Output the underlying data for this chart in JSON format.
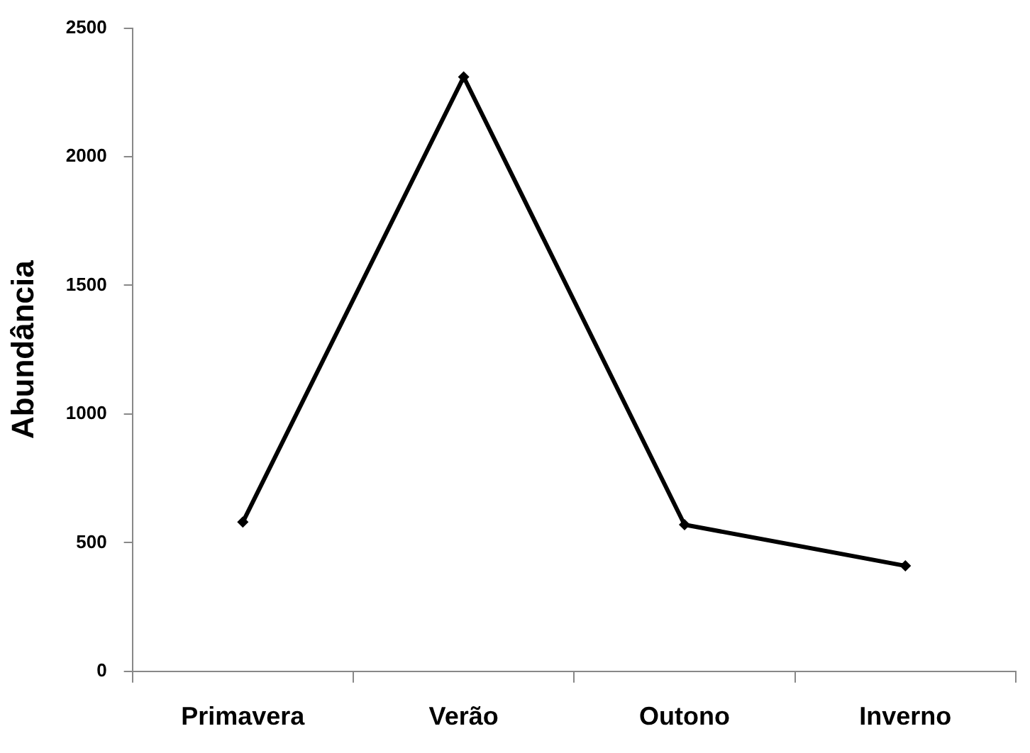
{
  "chart_data": {
    "type": "line",
    "ylabel": "Abundância",
    "categories": [
      "Primavera",
      "Verão",
      "Outono",
      "Inverno"
    ],
    "series": [
      {
        "color": "#000000",
        "values": [
          580,
          2310,
          570,
          410
        ]
      }
    ],
    "ylim": [
      0,
      2500
    ],
    "yticks": [
      0,
      500,
      1000,
      1500,
      2000,
      2500
    ],
    "grid": false,
    "legend": false,
    "marker": "diamond",
    "line_style": "solid"
  }
}
